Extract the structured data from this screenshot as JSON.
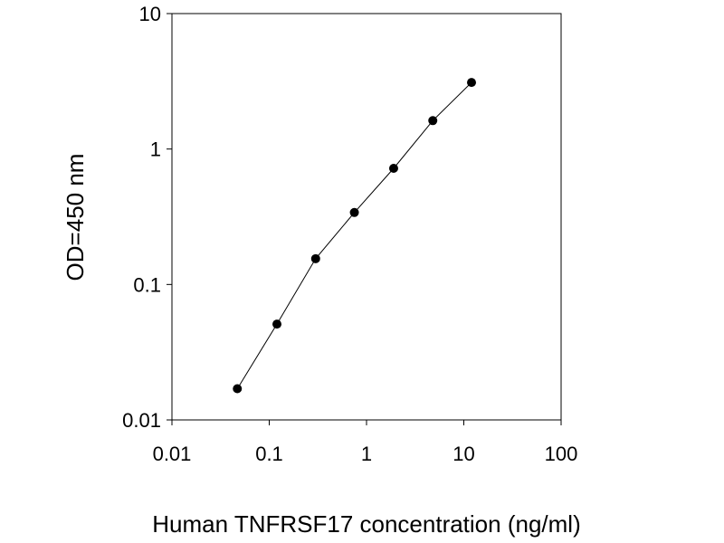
{
  "chart_data": {
    "type": "scatter",
    "title": "",
    "xlabel": "Human TNFRSF17 concentration (ng/ml)",
    "ylabel": "OD=450 nm",
    "x_scale": "log",
    "y_scale": "log",
    "xlim": [
      0.01,
      100
    ],
    "ylim": [
      0.01,
      10
    ],
    "x_ticks": [
      0.01,
      0.1,
      1,
      10,
      100
    ],
    "x_tick_labels": [
      "0.01",
      "0.1",
      "1",
      "10",
      "100"
    ],
    "y_ticks": [
      0.01,
      0.1,
      1,
      10
    ],
    "y_tick_labels": [
      "0.01",
      "0.1",
      "1",
      "10"
    ],
    "grid": false,
    "series": [
      {
        "x": [
          0.047,
          0.12,
          0.3,
          0.75,
          1.9,
          4.8,
          12
        ],
        "y": [
          0.017,
          0.051,
          0.155,
          0.34,
          0.72,
          1.62,
          3.1
        ],
        "connected": true,
        "marker": "circle",
        "color": "#000000"
      }
    ]
  }
}
